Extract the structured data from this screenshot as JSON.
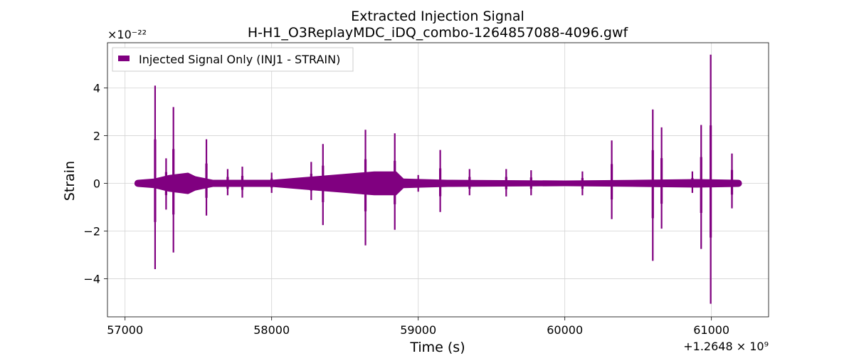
{
  "chart_data": {
    "type": "line",
    "title": "Extracted Injection Signal",
    "subtitle": "H-H1_O3ReplayMDC_iDQ_combo-1264857088-4096.gwf",
    "xlabel": "Time (s)",
    "ylabel": "Strain",
    "x_offset_label": "+1.2648 × 10⁹",
    "y_scale_label": "×10⁻²²",
    "xlim": [
      56880,
      61390
    ],
    "ylim": [
      -5.6,
      5.9
    ],
    "x_ticks": [
      57000,
      58000,
      59000,
      60000,
      61000
    ],
    "x_tick_labels": [
      "57000",
      "58000",
      "59000",
      "60000",
      "61000"
    ],
    "y_ticks": [
      -4,
      -2,
      0,
      2,
      4
    ],
    "y_tick_labels": [
      "−4",
      "−2",
      "0",
      "2",
      "4"
    ],
    "grid": true,
    "legend": {
      "position": "top-left",
      "entries": [
        "Injected Signal Only (INJ1 - STRAIN)"
      ]
    },
    "series": [
      {
        "name": "Injected Signal Only (INJ1 - STRAIN)",
        "color": "#800080",
        "x_range": [
          57088,
          61184
        ],
        "background_envelope": [
          [
            57088,
            0.15
          ],
          [
            57200,
            0.2
          ],
          [
            57300,
            0.35
          ],
          [
            57430,
            0.45
          ],
          [
            57480,
            0.3
          ],
          [
            57600,
            0.15
          ],
          [
            58000,
            0.15
          ],
          [
            58300,
            0.3
          ],
          [
            58500,
            0.4
          ],
          [
            58700,
            0.5
          ],
          [
            58850,
            0.5
          ],
          [
            58900,
            0.2
          ],
          [
            59200,
            0.15
          ],
          [
            60000,
            0.12
          ],
          [
            60500,
            0.15
          ],
          [
            60900,
            0.18
          ],
          [
            61184,
            0.15
          ]
        ],
        "spikes": [
          {
            "x": 57205,
            "max": 4.1,
            "min": -3.6
          },
          {
            "x": 57280,
            "max": 1.05,
            "min": -1.1
          },
          {
            "x": 57330,
            "max": 3.2,
            "min": -2.9
          },
          {
            "x": 57555,
            "max": 1.85,
            "min": -1.35
          },
          {
            "x": 57700,
            "max": 0.6,
            "min": -0.5
          },
          {
            "x": 57800,
            "max": 0.7,
            "min": -0.6
          },
          {
            "x": 58000,
            "max": 0.45,
            "min": -0.4
          },
          {
            "x": 58270,
            "max": 0.9,
            "min": -0.7
          },
          {
            "x": 58350,
            "max": 1.65,
            "min": -1.75
          },
          {
            "x": 58640,
            "max": 2.25,
            "min": -2.6
          },
          {
            "x": 58840,
            "max": 2.1,
            "min": -1.95
          },
          {
            "x": 59000,
            "max": 0.35,
            "min": -0.35
          },
          {
            "x": 59150,
            "max": 1.4,
            "min": -1.2
          },
          {
            "x": 59350,
            "max": 0.6,
            "min": -0.5
          },
          {
            "x": 59600,
            "max": 0.6,
            "min": -0.55
          },
          {
            "x": 59770,
            "max": 0.55,
            "min": -0.5
          },
          {
            "x": 60120,
            "max": 0.5,
            "min": -0.5
          },
          {
            "x": 60320,
            "max": 1.8,
            "min": -1.5
          },
          {
            "x": 60600,
            "max": 3.1,
            "min": -3.25
          },
          {
            "x": 60660,
            "max": 2.35,
            "min": -1.9
          },
          {
            "x": 60870,
            "max": 0.5,
            "min": -0.4
          },
          {
            "x": 60930,
            "max": 2.45,
            "min": -2.75
          },
          {
            "x": 60995,
            "max": 5.4,
            "min": -5.05
          },
          {
            "x": 61140,
            "max": 1.25,
            "min": -1.05
          }
        ]
      }
    ]
  }
}
